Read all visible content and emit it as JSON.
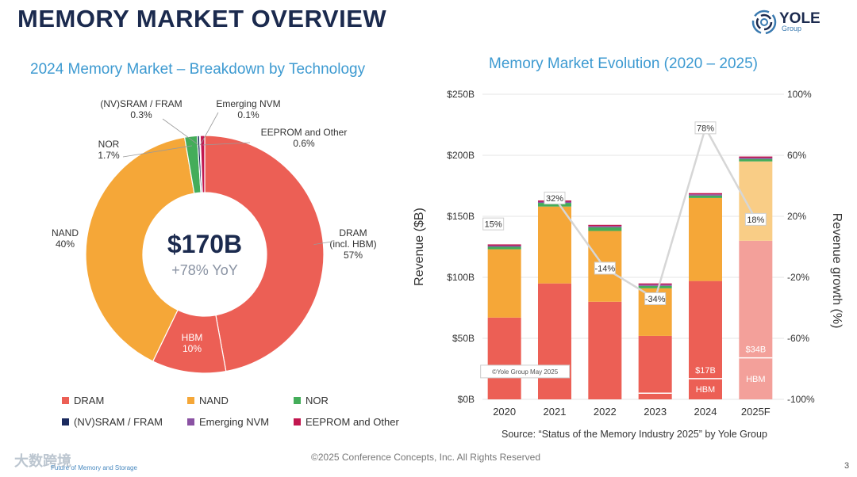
{
  "header": {
    "title": "MEMORY MARKET OVERVIEW",
    "logo_name": "YOLE",
    "logo_sub": "Group"
  },
  "colors": {
    "dram": "#ec5f55",
    "nand": "#f5a738",
    "nor": "#44ad5a",
    "sram": "#1b2a5e",
    "emerging": "#8a52a3",
    "eeprom": "#c2174f",
    "forecast_dram": "#f3a09a",
    "forecast_nand": "#f9cd86",
    "growth_line": "#d6d6d6",
    "title_blue": "#3d9ad1"
  },
  "chart_data": [
    {
      "type": "pie",
      "title": "2024 Memory Market – Breakdown by Technology",
      "center_value": "$170B",
      "center_sub": "+78% YoY",
      "slices": [
        {
          "key": "dram",
          "label": "DRAM\n(incl. HBM)",
          "percent_label": "57%",
          "value": 47
        },
        {
          "key": "hbm",
          "label": "HBM",
          "percent_label": "10%",
          "value": 10
        },
        {
          "key": "nand",
          "label": "NAND",
          "percent_label": "40%",
          "value": 40
        },
        {
          "key": "nor",
          "label": "NOR",
          "percent_label": "1.7%",
          "value": 1.7
        },
        {
          "key": "sram",
          "label": "(NV)SRAM / FRAM",
          "percent_label": "0.3%",
          "value": 0.3
        },
        {
          "key": "emerging",
          "label": "Emerging NVM",
          "percent_label": "0.1%",
          "value": 0.1
        },
        {
          "key": "eeprom",
          "label": "EEPROM and Other",
          "percent_label": "0.6%",
          "value": 0.6
        }
      ],
      "legend": [
        {
          "key": "dram",
          "label": "DRAM"
        },
        {
          "key": "nand",
          "label": "NAND"
        },
        {
          "key": "nor",
          "label": "NOR"
        },
        {
          "key": "sram",
          "label": "(NV)SRAM / FRAM"
        },
        {
          "key": "emerging",
          "label": "Emerging NVM"
        },
        {
          "key": "eeprom",
          "label": "EEPROM and Other"
        }
      ]
    },
    {
      "type": "bar",
      "stacked": true,
      "title": "Memory Market Evolution (2020 – 2025)",
      "ylabel": "Revenue ($B)",
      "y2label": "Revenue growth (%)",
      "ylim": [
        0,
        250
      ],
      "y2lim": [
        -100,
        100
      ],
      "yticks": [
        "$0B",
        "$50B",
        "$100B",
        "$150B",
        "$200B",
        "$250B"
      ],
      "y2ticks": [
        "-100%",
        "-60%",
        "-20%",
        "20%",
        "60%",
        "100%"
      ],
      "categories": [
        "2020",
        "2021",
        "2022",
        "2023",
        "2024",
        "2025F"
      ],
      "forecast_index": 5,
      "series": [
        {
          "key": "dram",
          "values": [
            67,
            95,
            80,
            52,
            97,
            130
          ]
        },
        {
          "key": "nand",
          "values": [
            56,
            63,
            58,
            39,
            68,
            65
          ]
        },
        {
          "key": "nor",
          "values": [
            2,
            3,
            3,
            2,
            2,
            2
          ]
        },
        {
          "key": "emerging",
          "values": [
            1,
            1,
            1,
            1,
            1,
            1
          ]
        },
        {
          "key": "eeprom",
          "values": [
            1,
            1,
            1,
            1,
            1,
            1
          ]
        }
      ],
      "hbm": {
        "values": [
          0,
          0,
          0,
          5,
          17,
          34
        ],
        "labels": [
          "",
          "",
          "",
          "",
          "$17B",
          "$34B"
        ],
        "label": "HBM"
      },
      "growth": {
        "values": [
          15,
          32,
          -14,
          -34,
          78,
          18
        ],
        "labels": [
          "15%",
          "32%",
          "-14%",
          "-34%",
          "78%",
          "18%"
        ],
        "draw_line_from_index": 1
      },
      "annotation": "©Yole Group May 2025"
    }
  ],
  "footer": {
    "source": "Source: “Status of the Memory Industry 2025” by Yole Group",
    "copyright": "©2025 Conference Concepts, Inc. All Rights Reserved",
    "page_number": "3",
    "watermark": "大数跨境",
    "event_tag": "Future of Memory and Storage"
  }
}
